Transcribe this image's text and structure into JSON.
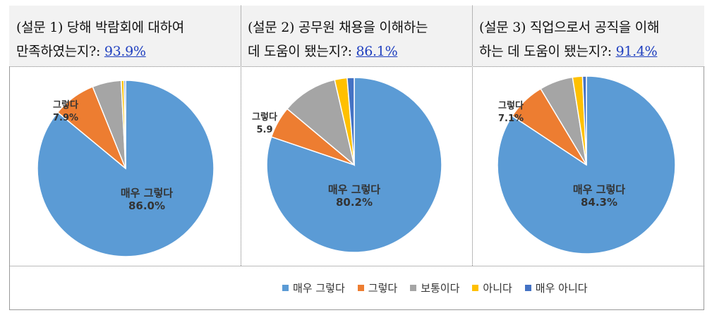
{
  "panels": [
    {
      "title_line1": "(설문 1) 당해 박람회에 대하여",
      "title_line2": "만족하였는지?:",
      "percent": "93.9%"
    },
    {
      "title_line1": "(설문 2) 공무원 채용을 이해하는",
      "title_line2": "데  도움이  됐는지?:",
      "percent": "86.1%"
    },
    {
      "title_line1": "(설문 3) 직업으로서 공직을 이해",
      "title_line2": "하는 데 도움이 됐는지?:",
      "percent": "91.4%"
    }
  ],
  "legend": [
    "매우 그렇다",
    "그렇다",
    "보통이다",
    "아니다",
    "매우 아니다"
  ],
  "colors": [
    "#5b9bd5",
    "#ed7d31",
    "#a5a5a5",
    "#ffc000",
    "#4472c4"
  ],
  "chart_data": [
    {
      "type": "pie",
      "title": "(설문 1) 당해 박람회에 대하여 만족하였는지?: 93.9%",
      "categories": [
        "매우 그렇다",
        "그렇다",
        "보통이다",
        "아니다",
        "매우 아니다"
      ],
      "values": [
        86.0,
        7.9,
        5.3,
        0.5,
        0.3
      ],
      "labels": [
        {
          "category": "매우 그렇다",
          "name": "매우 그렇다",
          "value": "86.0%"
        },
        {
          "category": "그렇다",
          "name": "그렇다",
          "value": "7.9%"
        }
      ]
    },
    {
      "type": "pie",
      "title": "(설문 2) 공무원 채용을 이해하는 데 도움이 됐는지?: 86.1%",
      "categories": [
        "매우 그렇다",
        "그렇다",
        "보통이다",
        "아니다",
        "매우 아니다"
      ],
      "values": [
        80.2,
        5.9,
        10.3,
        2.3,
        1.3
      ],
      "labels": [
        {
          "category": "매우 그렇다",
          "name": "매우 그렇다",
          "value": "80.2%"
        },
        {
          "category": "그렇다",
          "name": "그렇다",
          "value": "5.9"
        }
      ]
    },
    {
      "type": "pie",
      "title": "(설문 3) 직업으로서 공직을 이해하는 데 도움이 됐는지?: 91.4%",
      "categories": [
        "매우 그렇다",
        "그렇다",
        "보통이다",
        "아니다",
        "매우 아니다"
      ],
      "values": [
        84.3,
        7.1,
        6.1,
        1.8,
        0.7
      ],
      "labels": [
        {
          "category": "매우 그렇다",
          "name": "매우 그렇다",
          "value": "84.3%"
        },
        {
          "category": "그렇다",
          "name": "그렇다",
          "value": "7.1%"
        }
      ]
    }
  ]
}
